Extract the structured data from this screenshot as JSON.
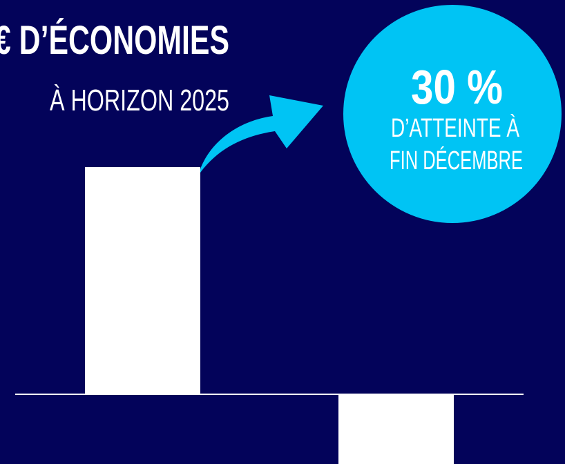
{
  "header": {
    "title": "€ D’ÉCONOMIES",
    "subtitle": "À HORIZON 2025"
  },
  "badge": {
    "value": "30 %",
    "line1": "D’ATTEINTE À",
    "line2": "FIN DÉCEMBRE"
  }
}
